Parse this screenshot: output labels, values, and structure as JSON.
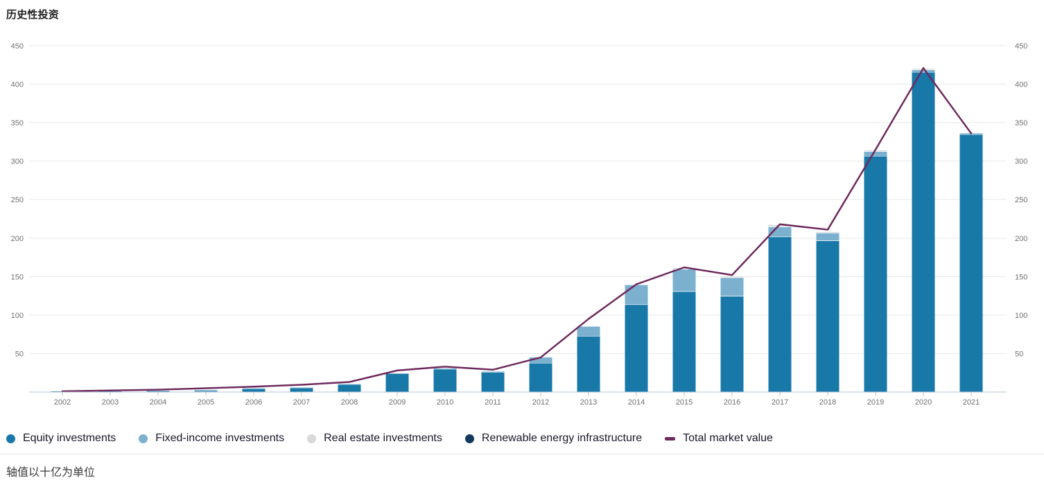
{
  "title": "历史性投资",
  "footnote": "轴值以十亿为单位",
  "colors": {
    "equity": "#1878a8",
    "fixed_income": "#7cb0cf",
    "real_estate": "#d9d9d9",
    "renewable": "#14395f",
    "total_line": "#6e2a5d",
    "gridline": "#e8e8e8",
    "axis_line": "#b6c5d9",
    "axis_text": "#707070",
    "background": "#ffffff"
  },
  "legend": {
    "items": [
      {
        "label": "Equity investments",
        "marker": "circle",
        "color": "#1878a8"
      },
      {
        "label": "Fixed-income investments",
        "marker": "circle",
        "color": "#7cb0cf"
      },
      {
        "label": "Real estate investments",
        "marker": "circle",
        "color": "#d9d9d9"
      },
      {
        "label": "Renewable energy infrastructure",
        "marker": "circle",
        "color": "#14395f"
      },
      {
        "label": "Total market value",
        "marker": "dash",
        "color": "#6e2a5d"
      }
    ]
  },
  "chart_data": {
    "type": "combo (stacked column + line)",
    "title": "历史性投资",
    "xlabel": "",
    "ylabel": "",
    "units_note": "轴值以十亿为单位 (axis values in billions)",
    "ylim": [
      0,
      450
    ],
    "yticks": [
      50,
      100,
      150,
      200,
      250,
      300,
      350,
      400,
      450
    ],
    "y_axis_sides": [
      "left",
      "right"
    ],
    "grid": true,
    "legend_position": "bottom",
    "categories": [
      "2002",
      "2003",
      "2004",
      "2005",
      "2006",
      "2007",
      "2008",
      "2009",
      "2010",
      "2011",
      "2012",
      "2013",
      "2014",
      "2015",
      "2016",
      "2017",
      "2018",
      "2019",
      "2020",
      "2021"
    ],
    "series": [
      {
        "name": "Equity investments",
        "type": "column",
        "color": "#1878a8",
        "values": [
          1,
          1,
          1.5,
          2,
          4.5,
          5.5,
          10,
          24,
          30,
          26,
          38,
          73,
          114,
          131,
          125,
          202,
          197,
          307,
          416,
          335
        ]
      },
      {
        "name": "Fixed-income investments",
        "type": "column",
        "color": "#7cb0cf",
        "values": [
          0,
          0,
          0,
          0.5,
          0.5,
          0.5,
          0.5,
          0,
          0.5,
          0.5,
          7,
          12,
          25,
          29,
          24,
          13,
          10,
          6,
          3,
          1
        ]
      },
      {
        "name": "Real estate investments",
        "type": "column",
        "color": "#d9d9d9",
        "values": [
          0,
          0,
          0,
          0,
          0,
          0,
          0,
          0,
          0,
          0,
          0,
          0,
          0,
          1,
          1,
          2,
          1,
          1,
          1,
          0
        ]
      },
      {
        "name": "Renewable energy infrastructure",
        "type": "column",
        "color": "#14395f",
        "values": [
          0,
          0,
          0,
          0,
          0,
          0,
          0,
          0,
          0,
          0,
          0,
          0,
          0,
          0,
          0,
          0,
          0,
          0,
          0,
          0
        ]
      },
      {
        "name": "Total market value",
        "type": "line",
        "color": "#6e2a5d",
        "values": [
          1,
          2,
          3,
          5,
          7,
          9.5,
          13,
          28,
          33,
          29,
          45,
          95,
          140,
          162,
          152,
          218,
          211,
          315,
          421,
          336
        ]
      }
    ]
  }
}
